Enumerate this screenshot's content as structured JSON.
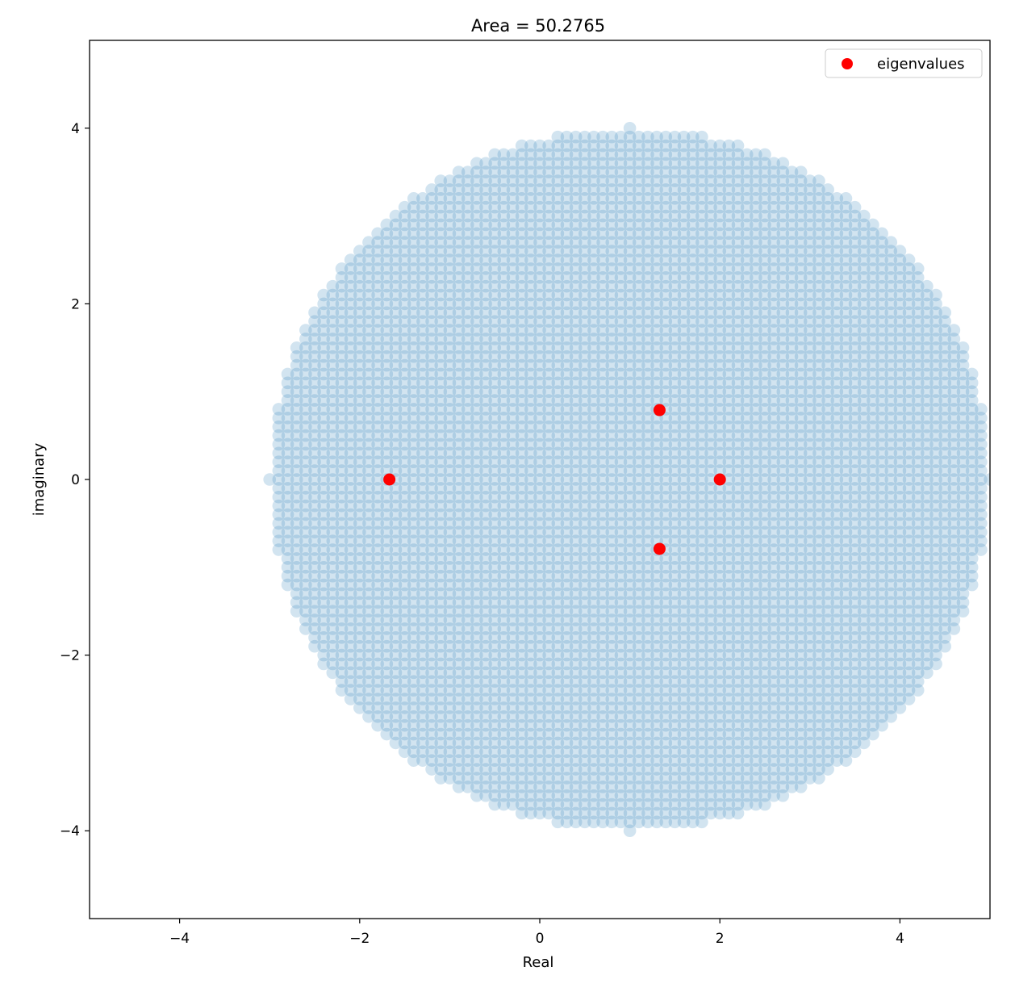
{
  "chart_data": {
    "type": "scatter",
    "title": "Area = 50.2765",
    "xlabel": "Real",
    "ylabel": "imaginary",
    "xlim": [
      -5,
      5
    ],
    "ylim": [
      -5,
      5
    ],
    "xticks": [
      -4,
      -2,
      0,
      2,
      4
    ],
    "yticks": [
      -4,
      -2,
      0,
      2,
      4
    ],
    "xtick_labels": [
      "−4",
      "−2",
      "0",
      "2",
      "4"
    ],
    "ytick_labels": [
      "−4",
      "−2",
      "0",
      "2",
      "4"
    ],
    "grid": false,
    "legend_position": "top-right",
    "region": {
      "shape": "disk",
      "center": [
        1.0,
        0.0
      ],
      "radius": 4.0,
      "grid_step": 0.1,
      "color": "#1f77b4",
      "alpha": 0.2
    },
    "series": [
      {
        "name": "eigenvalues",
        "color": "#ff0000",
        "x": [
          -1.67,
          1.33,
          1.33,
          2.0
        ],
        "y": [
          0.0,
          0.79,
          -0.79,
          0.0
        ]
      }
    ]
  }
}
